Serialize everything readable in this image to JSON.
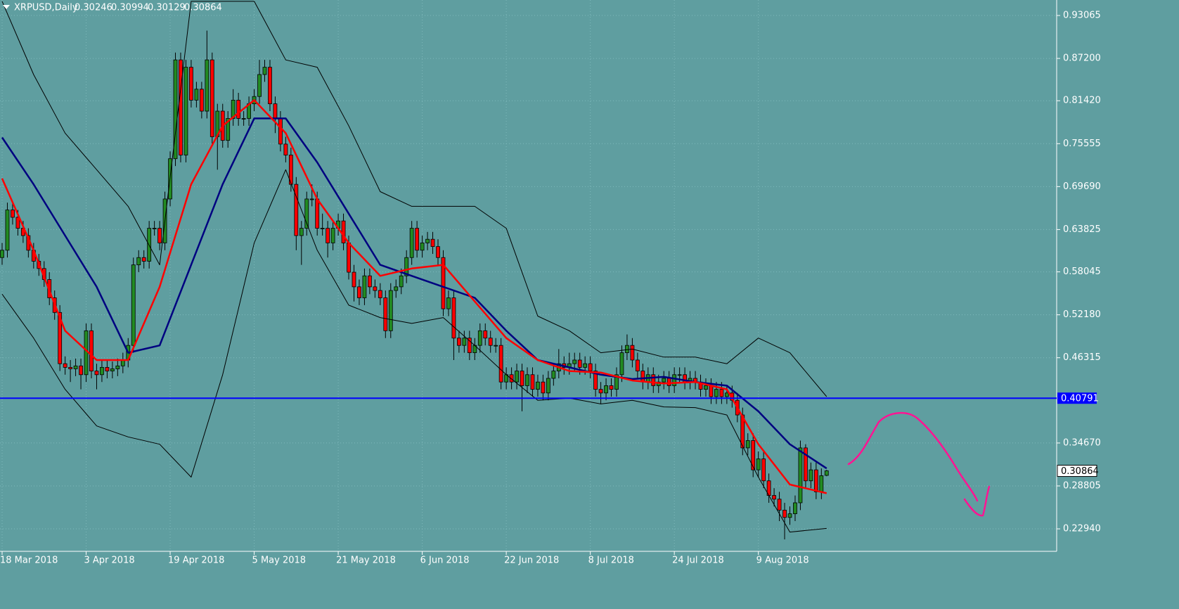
{
  "chart_data": {
    "type": "candlestick",
    "title": "XRPUSD,Daily",
    "categories": [
      "18 Mar 2018",
      null,
      null,
      null,
      null,
      null,
      null,
      null,
      null,
      null,
      null,
      null,
      null,
      null,
      null,
      null,
      "3 Apr 2018",
      null,
      null,
      null,
      null,
      null,
      null,
      null,
      null,
      null,
      null,
      null,
      null,
      null,
      null,
      null,
      "19 Apr 2018",
      null,
      null,
      null,
      null,
      null,
      null,
      null,
      null,
      null,
      null,
      null,
      null,
      null,
      null,
      null,
      "5 May 2018",
      null,
      null,
      null,
      null,
      null,
      null,
      null,
      null,
      null,
      null,
      null,
      null,
      null,
      null,
      null,
      "21 May 2018",
      null,
      null,
      null,
      null,
      null,
      null,
      null,
      null,
      null,
      null,
      null,
      null,
      null,
      null,
      null,
      "6 Jun 2018",
      null,
      null,
      null,
      null,
      null,
      null,
      null,
      null,
      null,
      null,
      null,
      null,
      null,
      null,
      null,
      "22 Jun 2018",
      null,
      null,
      null,
      null,
      null,
      null,
      null,
      null,
      null,
      null,
      null,
      null,
      null,
      null,
      null,
      "8 Jul 2018",
      null,
      null,
      null,
      null,
      null,
      null,
      null,
      null,
      null,
      null,
      null,
      null,
      null,
      null,
      null,
      "24 Jul 2018",
      null,
      null,
      null,
      null,
      null,
      null,
      null,
      null,
      null,
      null,
      null,
      null,
      null,
      null,
      null,
      "9 Aug 2018",
      null,
      null,
      null,
      null,
      null,
      null,
      null,
      null,
      null,
      null,
      null,
      null,
      null
    ],
    "open": [
      0.6,
      0.61,
      0.665,
      0.655,
      0.64,
      0.63,
      0.61,
      0.595,
      0.585,
      0.57,
      0.545,
      0.525,
      0.455,
      0.45,
      0.448,
      0.452,
      0.44,
      0.5,
      0.445,
      0.44,
      0.45,
      0.445,
      0.448,
      0.452,
      0.46,
      0.48,
      0.59,
      0.6,
      0.595,
      0.64,
      0.64,
      0.62,
      0.68,
      0.735,
      0.87,
      0.74,
      0.86,
      0.815,
      0.83,
      0.8,
      0.87,
      0.765,
      0.8,
      0.76,
      0.79,
      0.815,
      0.79,
      0.79,
      0.81,
      0.82,
      0.85,
      0.86,
      0.81,
      0.79,
      0.755,
      0.74,
      0.7,
      0.63,
      0.64,
      0.68,
      0.68,
      0.64,
      0.64,
      0.62,
      0.64,
      0.65,
      0.62,
      0.58,
      0.56,
      0.545,
      0.575,
      0.56,
      0.555,
      0.545,
      0.5,
      0.555,
      0.56,
      0.575,
      0.6,
      0.64,
      0.61,
      0.62,
      0.625,
      0.615,
      0.6,
      0.53,
      0.545,
      0.49,
      0.48,
      0.49,
      0.47,
      0.48,
      0.5,
      0.49,
      0.48,
      0.48,
      0.43,
      0.44,
      0.43,
      0.445,
      0.425,
      0.44,
      0.42,
      0.43,
      0.415,
      0.435,
      0.445,
      0.455,
      0.45,
      0.455,
      0.46,
      0.45,
      0.455,
      0.445,
      0.42,
      0.415,
      0.425,
      0.42,
      0.44,
      0.47,
      0.48,
      0.46,
      0.445,
      0.43,
      0.44,
      0.425,
      0.43,
      0.435,
      0.425,
      0.44,
      0.44,
      0.43,
      0.435,
      0.43,
      0.42,
      0.425,
      0.41,
      0.42,
      0.41,
      0.415,
      0.405,
      0.385,
      0.34,
      0.35,
      0.31,
      0.325,
      0.295,
      0.275,
      0.27,
      0.255,
      0.245,
      0.25,
      0.265,
      0.34,
      0.295,
      0.31,
      0.28,
      0.30246
    ],
    "high": [
      0.62,
      0.675,
      0.675,
      0.665,
      0.65,
      0.64,
      0.62,
      0.605,
      0.595,
      0.58,
      0.555,
      0.535,
      0.465,
      0.46,
      0.462,
      0.462,
      0.51,
      0.51,
      0.455,
      0.46,
      0.46,
      0.458,
      0.462,
      0.47,
      0.49,
      0.6,
      0.61,
      0.61,
      0.65,
      0.65,
      0.65,
      0.69,
      0.745,
      0.88,
      0.88,
      0.87,
      0.87,
      0.84,
      0.84,
      0.91,
      0.88,
      0.81,
      0.81,
      0.8,
      0.83,
      0.825,
      0.8,
      0.82,
      0.83,
      0.87,
      0.87,
      0.87,
      0.82,
      0.8,
      0.765,
      0.75,
      0.71,
      0.65,
      0.69,
      0.7,
      0.69,
      0.66,
      0.65,
      0.65,
      0.66,
      0.66,
      0.63,
      0.59,
      0.57,
      0.585,
      0.585,
      0.57,
      0.565,
      0.555,
      0.565,
      0.57,
      0.585,
      0.61,
      0.65,
      0.65,
      0.63,
      0.635,
      0.635,
      0.625,
      0.61,
      0.555,
      0.555,
      0.5,
      0.5,
      0.5,
      0.49,
      0.51,
      0.51,
      0.5,
      0.49,
      0.49,
      0.45,
      0.45,
      0.455,
      0.455,
      0.45,
      0.45,
      0.44,
      0.44,
      0.445,
      0.455,
      0.475,
      0.465,
      0.47,
      0.47,
      0.47,
      0.465,
      0.465,
      0.455,
      0.43,
      0.435,
      0.435,
      0.45,
      0.48,
      0.495,
      0.49,
      0.47,
      0.455,
      0.45,
      0.45,
      0.44,
      0.445,
      0.445,
      0.45,
      0.45,
      0.45,
      0.445,
      0.445,
      0.44,
      0.435,
      0.435,
      0.43,
      0.43,
      0.425,
      0.425,
      0.415,
      0.395,
      0.36,
      0.36,
      0.335,
      0.335,
      0.305,
      0.285,
      0.28,
      0.265,
      0.26,
      0.275,
      0.35,
      0.345,
      0.32,
      0.32,
      0.312,
      0.30994
    ],
    "low": [
      0.59,
      0.6,
      0.645,
      0.63,
      0.62,
      0.6,
      0.585,
      0.575,
      0.56,
      0.535,
      0.515,
      0.445,
      0.44,
      0.43,
      0.438,
      0.42,
      0.43,
      0.435,
      0.42,
      0.43,
      0.435,
      0.435,
      0.438,
      0.442,
      0.45,
      0.47,
      0.58,
      0.585,
      0.585,
      0.63,
      0.61,
      0.61,
      0.67,
      0.725,
      0.73,
      0.73,
      0.805,
      0.805,
      0.79,
      0.79,
      0.755,
      0.72,
      0.75,
      0.75,
      0.78,
      0.78,
      0.78,
      0.78,
      0.8,
      0.81,
      0.84,
      0.8,
      0.77,
      0.745,
      0.73,
      0.69,
      0.61,
      0.59,
      0.63,
      0.67,
      0.63,
      0.63,
      0.6,
      0.61,
      0.63,
      0.61,
      0.57,
      0.54,
      0.535,
      0.535,
      0.55,
      0.545,
      0.535,
      0.49,
      0.49,
      0.545,
      0.55,
      0.565,
      0.59,
      0.6,
      0.6,
      0.61,
      0.605,
      0.59,
      0.52,
      0.52,
      0.46,
      0.47,
      0.47,
      0.46,
      0.46,
      0.47,
      0.48,
      0.47,
      0.47,
      0.42,
      0.42,
      0.42,
      0.42,
      0.39,
      0.415,
      0.41,
      0.41,
      0.405,
      0.405,
      0.425,
      0.435,
      0.44,
      0.44,
      0.445,
      0.44,
      0.44,
      0.435,
      0.41,
      0.4,
      0.405,
      0.41,
      0.41,
      0.43,
      0.46,
      0.45,
      0.435,
      0.42,
      0.42,
      0.415,
      0.415,
      0.42,
      0.415,
      0.415,
      0.43,
      0.42,
      0.42,
      0.42,
      0.41,
      0.41,
      0.4,
      0.4,
      0.4,
      0.4,
      0.395,
      0.375,
      0.33,
      0.33,
      0.3,
      0.3,
      0.285,
      0.265,
      0.26,
      0.24,
      0.215,
      0.235,
      0.24,
      0.255,
      0.285,
      0.285,
      0.27,
      0.27,
      0.30129
    ],
    "close": [
      0.61,
      0.665,
      0.655,
      0.64,
      0.63,
      0.61,
      0.595,
      0.585,
      0.57,
      0.545,
      0.525,
      0.455,
      0.45,
      0.448,
      0.452,
      0.44,
      0.5,
      0.445,
      0.44,
      0.45,
      0.445,
      0.448,
      0.452,
      0.46,
      0.48,
      0.59,
      0.6,
      0.595,
      0.64,
      0.64,
      0.62,
      0.68,
      0.735,
      0.87,
      0.74,
      0.86,
      0.815,
      0.83,
      0.8,
      0.87,
      0.765,
      0.8,
      0.76,
      0.79,
      0.815,
      0.79,
      0.79,
      0.81,
      0.82,
      0.85,
      0.86,
      0.81,
      0.79,
      0.755,
      0.74,
      0.7,
      0.63,
      0.64,
      0.68,
      0.68,
      0.64,
      0.64,
      0.62,
      0.64,
      0.65,
      0.62,
      0.58,
      0.56,
      0.545,
      0.575,
      0.56,
      0.555,
      0.545,
      0.5,
      0.555,
      0.56,
      0.575,
      0.6,
      0.64,
      0.61,
      0.62,
      0.625,
      0.615,
      0.6,
      0.53,
      0.545,
      0.49,
      0.48,
      0.49,
      0.47,
      0.48,
      0.5,
      0.49,
      0.48,
      0.48,
      0.43,
      0.44,
      0.43,
      0.445,
      0.425,
      0.44,
      0.42,
      0.43,
      0.415,
      0.435,
      0.445,
      0.455,
      0.45,
      0.455,
      0.46,
      0.45,
      0.455,
      0.445,
      0.42,
      0.415,
      0.425,
      0.42,
      0.44,
      0.47,
      0.48,
      0.46,
      0.445,
      0.43,
      0.44,
      0.425,
      0.43,
      0.435,
      0.425,
      0.44,
      0.44,
      0.43,
      0.435,
      0.43,
      0.42,
      0.425,
      0.41,
      0.42,
      0.41,
      0.415,
      0.405,
      0.385,
      0.34,
      0.35,
      0.31,
      0.325,
      0.295,
      0.275,
      0.27,
      0.255,
      0.245,
      0.25,
      0.265,
      0.34,
      0.295,
      0.31,
      0.28,
      0.302,
      0.30864
    ],
    "up_color": "#228b22",
    "down_color": "#ff0000",
    "lines": {
      "x": [
        0,
        6,
        12,
        18,
        24,
        30,
        36,
        42,
        48,
        54,
        60,
        66,
        72,
        78,
        84,
        90,
        96,
        102,
        108,
        114,
        120,
        126,
        132,
        138,
        144,
        150,
        157
      ],
      "series": [
        {
          "color": "#000000",
          "width": 1,
          "values": [
            0.95,
            0.85,
            0.77,
            0.72,
            0.67,
            0.59,
            0.95,
            0.95,
            0.95,
            0.87,
            0.86,
            0.78,
            0.69,
            0.67,
            0.67,
            0.67,
            0.64,
            0.52,
            0.5,
            0.47,
            0.475,
            0.464,
            0.464,
            0.455,
            0.49,
            0.47,
            0.41
          ]
        },
        {
          "color": "#000000",
          "width": 1,
          "values": [
            0.55,
            0.49,
            0.42,
            0.37,
            0.355,
            0.345,
            0.3,
            0.44,
            0.62,
            0.72,
            0.61,
            0.535,
            0.518,
            0.51,
            0.518,
            0.48,
            0.44,
            0.405,
            0.408,
            0.4,
            0.405,
            0.396,
            0.395,
            0.385,
            0.3,
            0.225,
            0.23
          ]
        },
        {
          "color": "#000080",
          "width": 2.5,
          "values": [
            0.764,
            0.7,
            0.63,
            0.56,
            0.47,
            0.48,
            0.59,
            0.7,
            0.79,
            0.79,
            0.73,
            0.66,
            0.59,
            0.575,
            0.56,
            0.545,
            0.5,
            0.46,
            0.45,
            0.44,
            0.434,
            0.437,
            0.43,
            0.425,
            0.39,
            0.345,
            0.312
          ]
        },
        {
          "color": "#ff0000",
          "width": 2.5,
          "values": [
            0.708,
            0.61,
            0.5,
            0.46,
            0.46,
            0.56,
            0.7,
            0.78,
            0.815,
            0.77,
            0.68,
            0.62,
            0.575,
            0.585,
            0.59,
            0.54,
            0.49,
            0.46,
            0.445,
            0.443,
            0.432,
            0.428,
            0.43,
            0.42,
            0.345,
            0.29,
            0.278
          ]
        }
      ]
    },
    "hline": {
      "value": 0.40791,
      "color": "#0000ff"
    },
    "ylim": [
      0.1987,
      0.9518
    ],
    "yticks": [
      0.93065,
      {
        "value": 0.872,
        "label": "0.87200"
      },
      {
        "value": 0.8142,
        "label": "0.81420"
      },
      0.75555,
      {
        "value": 0.6969,
        "label": "0.69690"
      },
      0.63825,
      0.58045,
      {
        "value": 0.5218,
        "label": "0.52180"
      },
      0.46315,
      {
        "value": 0.3467,
        "label": "0.34670"
      },
      0.28805,
      {
        "value": 0.2294,
        "label": "0.22940"
      }
    ],
    "grid": true
  }
}
